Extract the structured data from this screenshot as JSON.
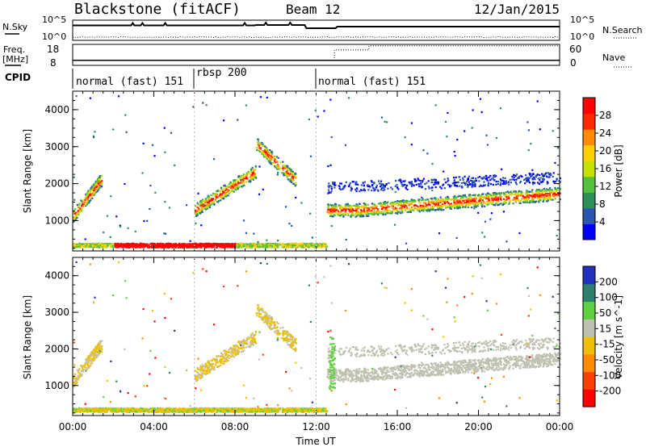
{
  "header": {
    "station": "Blackstone (fitACF)",
    "beam": "Beam 12",
    "date": "12/Jan/2015"
  },
  "noise_panel": {
    "left_label": "N.Sky",
    "right_label": "N.Search",
    "left_ticks": [
      "10^5",
      "10^0"
    ],
    "right_ticks": [
      "10^5",
      "10^0"
    ]
  },
  "freq_panel": {
    "left_label_top": "Freq.",
    "left_label_unit": "[MHz]",
    "right_label": "Nave",
    "left_ticks": [
      "18",
      "8"
    ],
    "right_ticks": [
      "60",
      "0"
    ]
  },
  "cpid": {
    "label": "CPID",
    "segments": [
      {
        "label": "normal (fast) 151",
        "start_hour": 0
      },
      {
        "label": "rbsp 200",
        "start_hour": 6
      },
      {
        "label": "normal (fast) 151",
        "start_hour": 12
      }
    ]
  },
  "chart_data": [
    {
      "type": "heatmap",
      "name": "power",
      "ylabel": "Slant Range [km]",
      "ylim": [
        180,
        4500
      ],
      "yticks": [
        "1000",
        "2000",
        "3000",
        "4000"
      ],
      "colorbar_label": "Power [dB]",
      "colorbar_ticks": [
        "28",
        "24",
        "20",
        "16",
        "12",
        "8",
        "4"
      ],
      "colorscale": [
        "#0000ff",
        "#2a55b0",
        "#2f8f5a",
        "#55c040",
        "#c8e000",
        "#ffd000",
        "#ff8c00",
        "#ff2a00",
        "#ff0000"
      ]
    },
    {
      "type": "heatmap",
      "name": "velocity",
      "ylabel": "Slant Range [km]",
      "ylim": [
        180,
        4500
      ],
      "yticks": [
        "1000",
        "2000",
        "3000",
        "4000"
      ],
      "colorbar_label": "Velocity [m s^-1]",
      "colorbar_ticks": [
        "200",
        "100",
        "50",
        "15",
        "-15",
        "-50",
        "-100",
        "-200"
      ],
      "colorscale": [
        "#2030c0",
        "#2f7f6f",
        "#60d040",
        "#c0c0b0",
        "#f0c000",
        "#ff8c00",
        "#ff4000",
        "#ff0000"
      ]
    }
  ],
  "x_axis": {
    "label": "Time UT",
    "ticks": [
      "00:00",
      "04:00",
      "08:00",
      "12:00",
      "16:00",
      "20:00",
      "00:00"
    ]
  }
}
